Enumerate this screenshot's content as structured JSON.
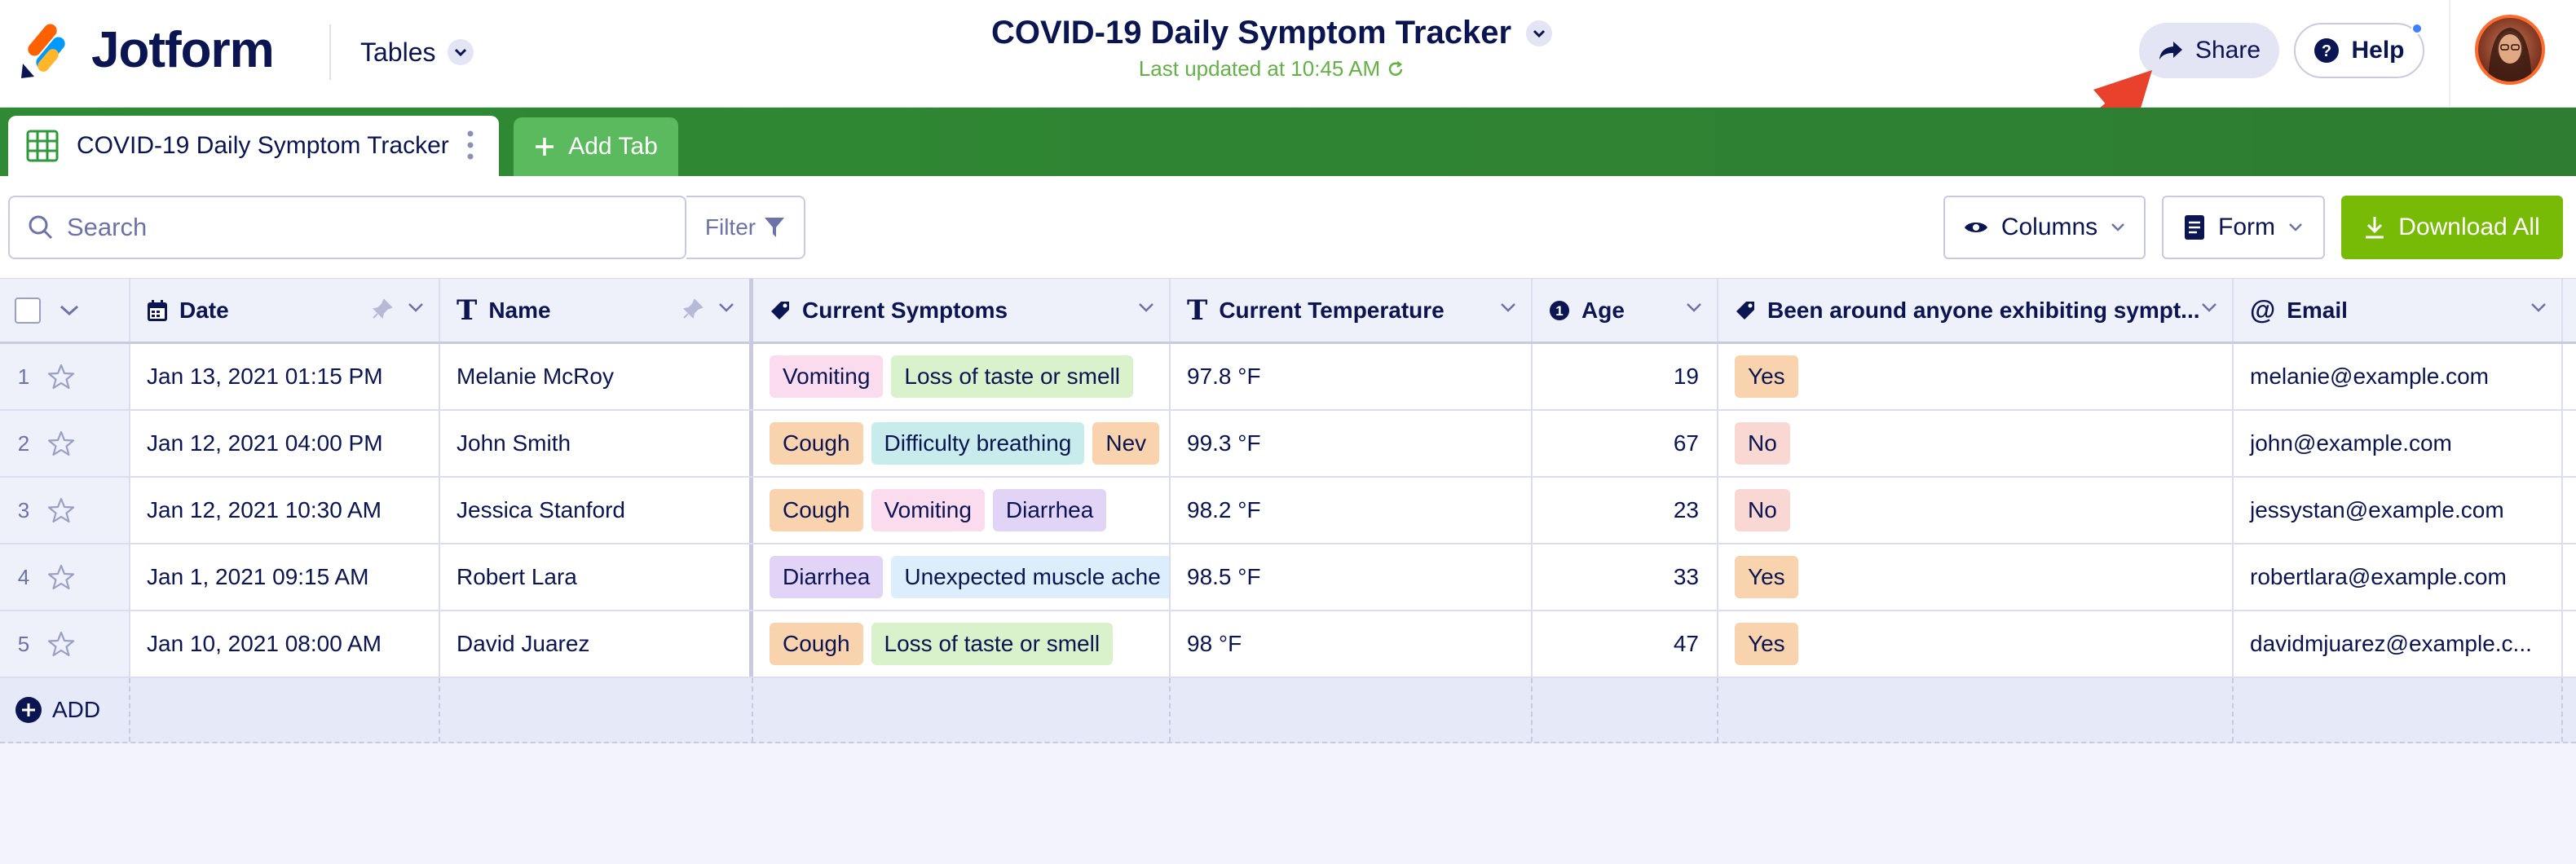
{
  "header": {
    "logo_text": "Jotform",
    "tables_label": "Tables",
    "title": "COVID-19 Daily Symptom Tracker",
    "last_updated": "Last updated at 10:45 AM",
    "share_label": "Share",
    "help_label": "Help"
  },
  "tabs": [
    {
      "label": "COVID-19 Daily Symptom Tracker",
      "active": true
    },
    {
      "label": "Add Tab",
      "active": false
    }
  ],
  "toolbar": {
    "search_placeholder": "Search",
    "filter_label": "Filter",
    "columns_label": "Columns",
    "form_label": "Form",
    "download_label": "Download All"
  },
  "columns": [
    {
      "label": "Date",
      "icon": "calendar-icon"
    },
    {
      "label": "Name",
      "icon": "text-icon"
    },
    {
      "label": "Current Symptoms",
      "icon": "tag-icon"
    },
    {
      "label": "Current Temperature",
      "icon": "text-icon"
    },
    {
      "label": "Age",
      "icon": "number-icon"
    },
    {
      "label": "Been around anyone exhibiting sympt...",
      "icon": "tag-icon"
    },
    {
      "label": "Email",
      "icon": "at-icon"
    }
  ],
  "rows": [
    {
      "num": "1",
      "date": "Jan 13, 2021 01:15 PM",
      "name": "Melanie McRoy",
      "symptoms": [
        "Vomiting",
        "Loss of taste or smell"
      ],
      "temp": "97.8 °F",
      "age": "19",
      "been": "Yes",
      "email": "melanie@example.com"
    },
    {
      "num": "2",
      "date": "Jan 12, 2021 04:00 PM",
      "name": "John Smith",
      "symptoms": [
        "Cough",
        "Difficulty breathing",
        "Nev"
      ],
      "temp": "99.3 °F",
      "age": "67",
      "been": "No",
      "email": "john@example.com"
    },
    {
      "num": "3",
      "date": "Jan 12, 2021 10:30 AM",
      "name": "Jessica Stanford",
      "symptoms": [
        "Cough",
        "Vomiting",
        "Diarrhea"
      ],
      "temp": "98.2 °F",
      "age": "23",
      "been": "No",
      "email": "jessystan@example.com"
    },
    {
      "num": "4",
      "date": "Jan 1, 2021 09:15 AM",
      "name": "Robert Lara",
      "symptoms": [
        "Diarrhea",
        "Unexpected muscle ache"
      ],
      "temp": "98.5 °F",
      "age": "33",
      "been": "Yes",
      "email": "robertlara@example.com"
    },
    {
      "num": "5",
      "date": "Jan 10, 2021 08:00 AM",
      "name": "David Juarez",
      "symptoms": [
        "Cough",
        "Loss of taste or smell"
      ],
      "temp": "98 °F",
      "age": "47",
      "been": "Yes",
      "email": "davidmjuarez@example.c..."
    }
  ],
  "add_row_label": "ADD",
  "tag_colors": {
    "Vomiting": "#fbdcef",
    "Loss of taste or smell": "#d9f2cc",
    "Cough": "#f8d3ad",
    "Difficulty breathing": "#c7eceb",
    "Nev": "#f8d3ad",
    "Diarrhea": "#e2d4f7",
    "Unexpected muscle ache": "#dceefb",
    "Yes": "#f8d3ad",
    "No": "#f9d8d3"
  },
  "colors": {
    "brand_navy": "#0a1551",
    "tab_bar_green": "#2e7d32",
    "add_tab_green": "#5cba5e",
    "download_green": "#78bb07",
    "updated_green": "#64b246",
    "arrow_red": "#e8412c"
  }
}
